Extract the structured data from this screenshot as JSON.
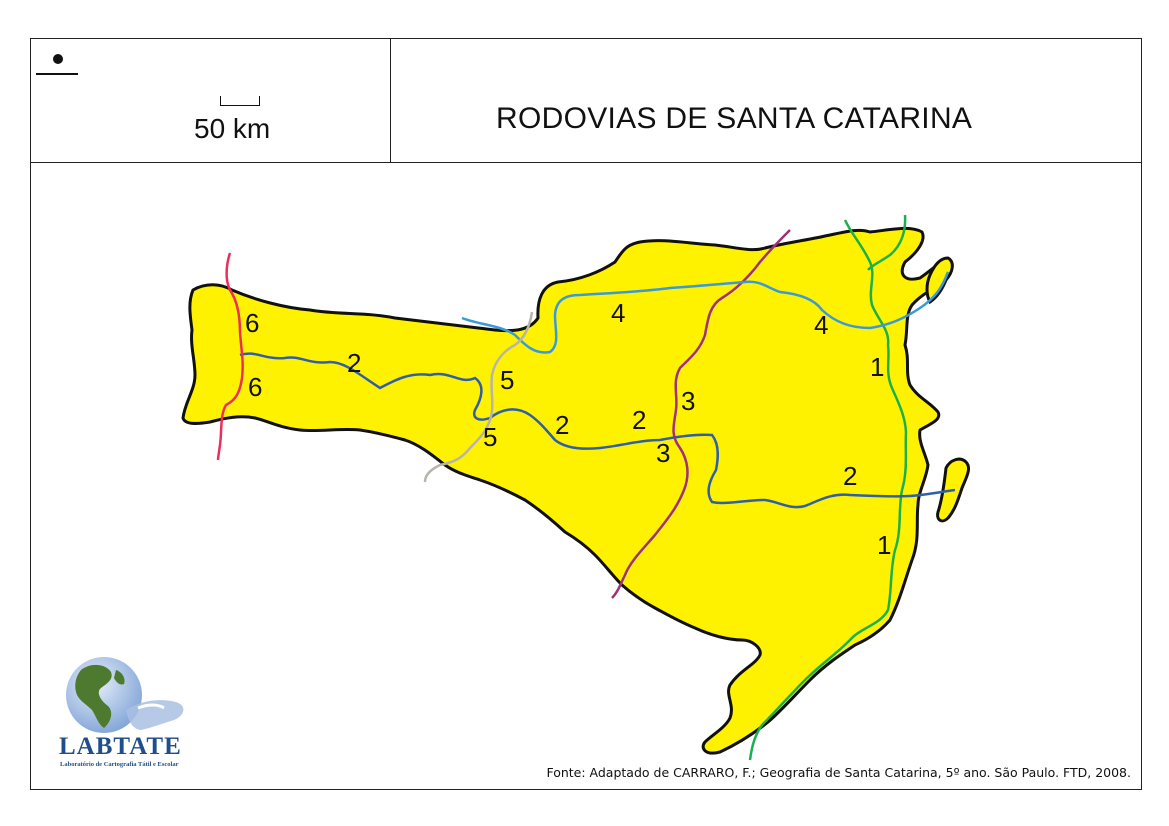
{
  "header": {
    "title": "RODOVIAS DE SANTA CATARINA",
    "scale_label": "50 km",
    "north_icon": "north-arrow-dot"
  },
  "map": {
    "fill_color": "#fff200",
    "outline_color": "#111111",
    "roads": [
      {
        "id": "1",
        "color": "#1bb04a",
        "labels": [
          "1",
          "1"
        ]
      },
      {
        "id": "2",
        "color": "#2e5fa8",
        "labels": [
          "2",
          "2",
          "2",
          "2"
        ]
      },
      {
        "id": "3",
        "color": "#a0307a",
        "labels": [
          "3",
          "3"
        ]
      },
      {
        "id": "4",
        "color": "#3a9ad9",
        "labels": [
          "4",
          "4"
        ]
      },
      {
        "id": "5",
        "color": "#b8b4a8",
        "labels": [
          "5",
          "5"
        ]
      },
      {
        "id": "6",
        "color": "#ec2f5a",
        "labels": [
          "6",
          "6"
        ]
      }
    ]
  },
  "footer": {
    "source": "Fonte: Adaptado de CARRARO, F.; Geografia de Santa Catarina, 5º ano. São Paulo. FTD, 2008."
  },
  "logo": {
    "name": "LABTATE",
    "subtitle": "Laboratório de Cartografia Tátil e Escolar",
    "icon": "globe-hand-icon"
  }
}
